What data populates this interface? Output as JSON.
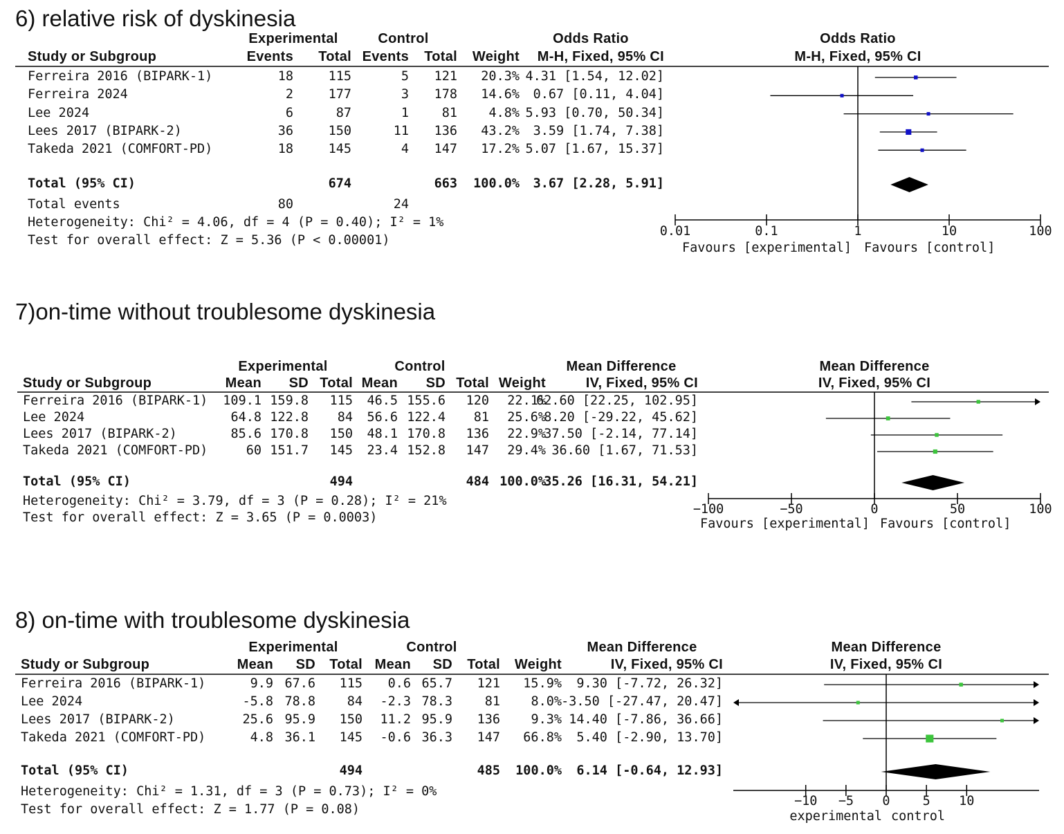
{
  "chart_data": [
    {
      "type": "forest",
      "title": "6) relative risk of dyskinesia",
      "group_headers": [
        "Experimental",
        "Control",
        "Odds Ratio"
      ],
      "columns": [
        "Study or Subgroup",
        "Events",
        "Total",
        "Events",
        "Total",
        "Weight",
        "M-H, Fixed, 95% CI"
      ],
      "plot_header": [
        "Odds Ratio",
        "M-H, Fixed, 95% CI"
      ],
      "scale": "log",
      "axis_ticks": [
        "0.01",
        "0.1",
        "1",
        "10",
        "100"
      ],
      "axis_range": [
        0.01,
        100
      ],
      "favours_left": "Favours [experimental]",
      "favours_right": "Favours [control]",
      "studies": [
        {
          "name": "Ferreira 2016 (BIPARK-1)",
          "cols": [
            "18",
            "115",
            "5",
            "121",
            "20.3%",
            "4.31 [1.54, 12.02]"
          ],
          "est": 4.31,
          "lo": 1.54,
          "hi": 12.02,
          "weight": 20.3
        },
        {
          "name": "Ferreira 2024",
          "cols": [
            "2",
            "177",
            "3",
            "178",
            "14.6%",
            "0.67 [0.11, 4.04]"
          ],
          "est": 0.67,
          "lo": 0.11,
          "hi": 4.04,
          "weight": 14.6
        },
        {
          "name": "Lee 2024",
          "cols": [
            "6",
            "87",
            "1",
            "81",
            "4.8%",
            "5.93 [0.70, 50.34]"
          ],
          "est": 5.93,
          "lo": 0.7,
          "hi": 50.34,
          "weight": 4.8
        },
        {
          "name": "Lees 2017 (BIPARK-2)",
          "cols": [
            "36",
            "150",
            "11",
            "136",
            "43.2%",
            "3.59 [1.74, 7.38]"
          ],
          "est": 3.59,
          "lo": 1.74,
          "hi": 7.38,
          "weight": 43.2
        },
        {
          "name": "Takeda 2021 (COMFORT-PD)",
          "cols": [
            "18",
            "145",
            "4",
            "147",
            "17.2%",
            "5.07 [1.67, 15.37]"
          ],
          "est": 5.07,
          "lo": 1.67,
          "hi": 15.37,
          "weight": 17.2
        }
      ],
      "total": {
        "name": "Total (95% CI)",
        "cols": [
          "",
          "674",
          "",
          "663",
          "100.0%",
          "3.67 [2.28, 5.91]"
        ],
        "est": 3.67,
        "lo": 2.28,
        "hi": 5.91
      },
      "total_events": {
        "label": "Total events",
        "experimental": "80",
        "control": "24"
      },
      "heterogeneity": "Heterogeneity: Chi² = 4.06, df = 4 (P = 0.40); I² = 1%",
      "overall_effect": "Test for overall effect: Z = 5.36 (P < 0.00001)",
      "marker_color": "#1010c8"
    },
    {
      "type": "forest",
      "title": "7)on-time without troublesome dyskinesia",
      "group_headers": [
        "Experimental",
        "Control",
        "Mean Difference"
      ],
      "columns": [
        "Study or Subgroup",
        "Mean",
        "SD",
        "Total",
        "Mean",
        "SD",
        "Total",
        "Weight",
        "IV, Fixed, 95% CI"
      ],
      "plot_header": [
        "Mean Difference",
        "IV, Fixed, 95% CI"
      ],
      "scale": "linear",
      "axis_ticks": [
        "-100",
        "-50",
        "0",
        "50",
        "100"
      ],
      "axis_range": [
        -100,
        100
      ],
      "favours_left": "Favours [experimental]",
      "favours_right": "Favours [control]",
      "studies": [
        {
          "name": "Ferreira 2016 (BIPARK-1)",
          "cols": [
            "109.1",
            "159.8",
            "115",
            "46.5",
            "155.6",
            "120",
            "22.1%",
            "62.60 [22.25, 102.95]"
          ],
          "est": 62.6,
          "lo": 22.25,
          "hi": 102.95,
          "weight": 22.1
        },
        {
          "name": "Lee 2024",
          "cols": [
            "64.8",
            "122.8",
            "84",
            "56.6",
            "122.4",
            "81",
            "25.6%",
            "8.20 [-29.22, 45.62]"
          ],
          "est": 8.2,
          "lo": -29.22,
          "hi": 45.62,
          "weight": 25.6
        },
        {
          "name": "Lees 2017 (BIPARK-2)",
          "cols": [
            "85.6",
            "170.8",
            "150",
            "48.1",
            "170.8",
            "136",
            "22.9%",
            "37.50 [-2.14, 77.14]"
          ],
          "est": 37.5,
          "lo": -2.14,
          "hi": 77.14,
          "weight": 22.9
        },
        {
          "name": "Takeda 2021 (COMFORT-PD)",
          "cols": [
            "60",
            "151.7",
            "145",
            "23.4",
            "152.8",
            "147",
            "29.4%",
            "36.60 [1.67, 71.53]"
          ],
          "est": 36.6,
          "lo": 1.67,
          "hi": 71.53,
          "weight": 29.4
        }
      ],
      "total": {
        "name": "Total (95% CI)",
        "cols": [
          "",
          "",
          "494",
          "",
          "",
          "484",
          "100.0%",
          "35.26 [16.31, 54.21]"
        ],
        "est": 35.26,
        "lo": 16.31,
        "hi": 54.21
      },
      "heterogeneity": "Heterogeneity: Chi² = 3.79, df = 3 (P = 0.28); I² = 21%",
      "overall_effect": "Test for overall effect: Z = 3.65 (P = 0.0003)",
      "marker_color": "#3cc43c"
    },
    {
      "type": "forest",
      "title": "8) on-time with troublesome dyskinesia",
      "group_headers": [
        "Experimental",
        "Control",
        "Mean Difference"
      ],
      "columns": [
        "Study or Subgroup",
        "Mean",
        "SD",
        "Total",
        "Mean",
        "SD",
        "Total",
        "Weight",
        "IV, Fixed, 95% CI"
      ],
      "plot_header": [
        "Mean Difference",
        "IV, Fixed, 95% CI"
      ],
      "scale": "linear",
      "axis_ticks": [
        "-10",
        "-5",
        "0",
        "5",
        "10"
      ],
      "axis_range": [
        -19,
        19
      ],
      "favours_left": "experimental",
      "favours_right": "control",
      "studies": [
        {
          "name": "Ferreira 2016 (BIPARK-1)",
          "cols": [
            "9.9",
            "67.6",
            "115",
            "0.6",
            "65.7",
            "121",
            "15.9%",
            "9.30 [-7.72, 26.32]"
          ],
          "est": 9.3,
          "lo": -7.72,
          "hi": 26.32,
          "weight": 15.9
        },
        {
          "name": "Lee 2024",
          "cols": [
            "-5.8",
            "78.8",
            "84",
            "-2.3",
            "78.3",
            "81",
            "8.0%",
            "-3.50 [-27.47, 20.47]"
          ],
          "est": -3.5,
          "lo": -27.47,
          "hi": 20.47,
          "weight": 8.0
        },
        {
          "name": "Lees 2017 (BIPARK-2)",
          "cols": [
            "25.6",
            "95.9",
            "150",
            "11.2",
            "95.9",
            "136",
            "9.3%",
            "14.40 [-7.86, 36.66]"
          ],
          "est": 14.4,
          "lo": -7.86,
          "hi": 36.66,
          "weight": 9.3
        },
        {
          "name": "Takeda 2021 (COMFORT-PD)",
          "cols": [
            "4.8",
            "36.1",
            "145",
            "-0.6",
            "36.3",
            "147",
            "66.8%",
            "5.40 [-2.90, 13.70]"
          ],
          "est": 5.4,
          "lo": -2.9,
          "hi": 13.7,
          "weight": 66.8
        }
      ],
      "total": {
        "name": "Total (95% CI)",
        "cols": [
          "",
          "",
          "494",
          "",
          "",
          "485",
          "100.0%",
          "6.14 [-0.64, 12.93]"
        ],
        "est": 6.14,
        "lo": -0.64,
        "hi": 12.93
      },
      "heterogeneity": "Heterogeneity: Chi² = 1.31, df = 3 (P = 0.73); I² = 0%",
      "overall_effect": "Test for overall effect: Z = 1.77 (P = 0.08)",
      "marker_color": "#3cc43c"
    }
  ]
}
